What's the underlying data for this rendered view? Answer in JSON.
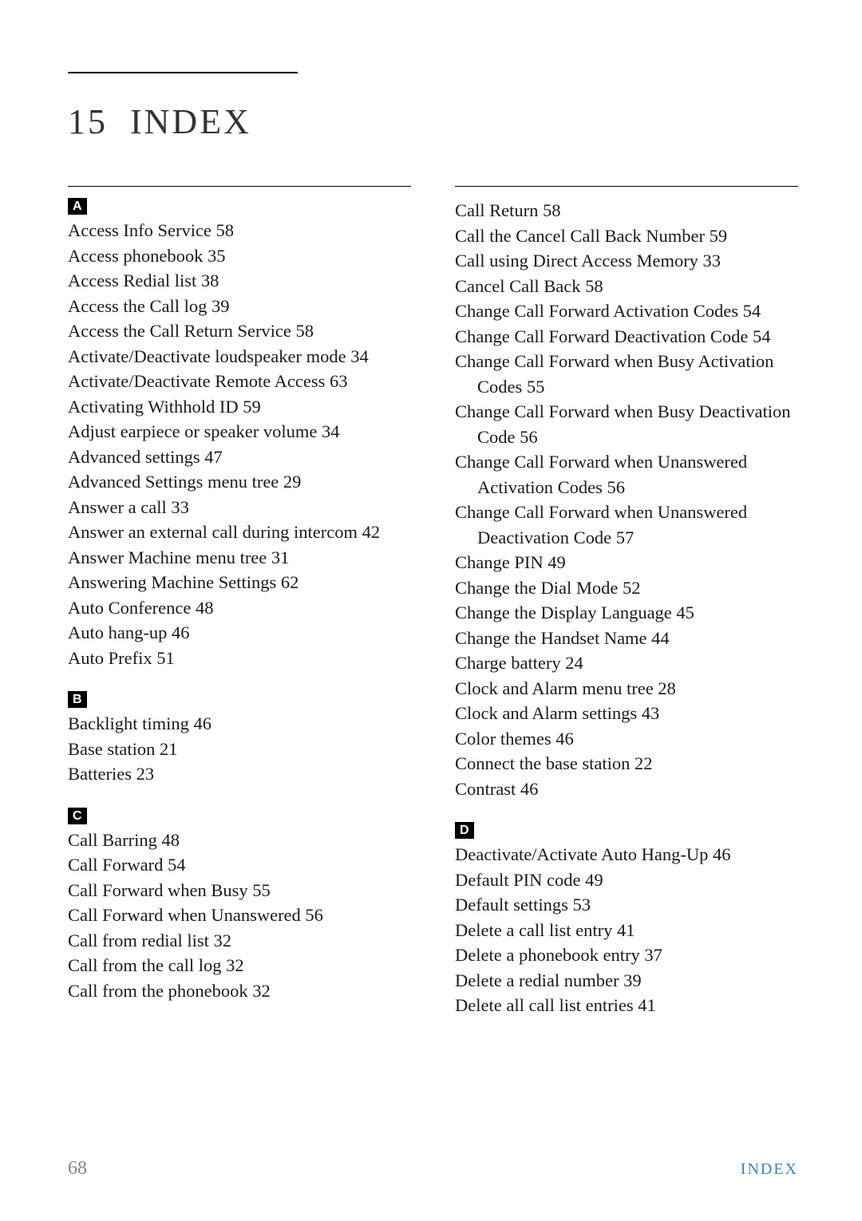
{
  "chapter_number": "15",
  "chapter_title": "INDEX",
  "colors": {
    "text": "#1a1a1a",
    "page_num": "#888888",
    "footer_label": "#3d84c4",
    "letter_bg": "#000000",
    "letter_fg": "#ffffff",
    "background": "#ffffff"
  },
  "typography": {
    "entry_fontsize": 22.5,
    "title_fontsize": 44,
    "letter_spacing_title": 3
  },
  "left_column": [
    {
      "letter": "A",
      "entries": [
        "Access Info Service 58",
        "Access phonebook 35",
        "Access Redial list 38",
        "Access the Call log 39",
        "Access the Call Return Service 58",
        "Activate/Deactivate loudspeaker mode 34",
        "Activate/Deactivate Remote Access 63",
        "Activating Withhold ID 59",
        "Adjust earpiece or speaker volume 34",
        "Advanced settings 47",
        "Advanced Settings menu tree 29",
        "Answer a call 33",
        "Answer an external call during intercom 42",
        "Answer Machine menu tree 31",
        "Answering Machine Settings 62",
        "Auto Conference 48",
        "Auto hang-up 46",
        "Auto Prefix 51"
      ]
    },
    {
      "letter": "B",
      "entries": [
        "Backlight timing 46",
        "Base station 21",
        "Batteries 23"
      ]
    },
    {
      "letter": "C",
      "entries": [
        "Call Barring 48",
        "Call Forward 54",
        "Call Forward when Busy 55",
        "Call Forward when Unanswered 56",
        "Call from redial list 32",
        "Call from the call log 32",
        "Call from the phonebook 32"
      ]
    }
  ],
  "right_column": [
    {
      "entries": [
        "Call Return 58",
        "Call the Cancel Call Back Number 59",
        "Call using Direct Access Memory 33",
        "Cancel Call Back 58",
        "Change Call Forward Activation Codes 54",
        "Change Call Forward Deactivation Code 54",
        "Change Call Forward when Busy Activation Codes 55",
        "Change Call Forward when Busy Deactivation Code 56",
        "Change Call Forward when Unanswered Activation Codes 56",
        "Change Call Forward when Unanswered Deactivation Code 57",
        "Change PIN 49",
        "Change the Dial Mode 52",
        "Change the Display Language 45",
        "Change the Handset Name 44",
        "Charge battery 24",
        "Clock and Alarm menu tree 28",
        "Clock and Alarm settings 43",
        "Color themes 46",
        "Connect the base station 22",
        "Contrast 46"
      ]
    },
    {
      "letter": "D",
      "entries": [
        "Deactivate/Activate Auto Hang-Up 46",
        "Default PIN code 49",
        "Default settings 53",
        "Delete a call list entry 41",
        "Delete a phonebook entry 37",
        "Delete a redial number 39",
        "Delete all call list entries 41"
      ]
    }
  ],
  "page_number": "68",
  "footer_label": "INDEX"
}
